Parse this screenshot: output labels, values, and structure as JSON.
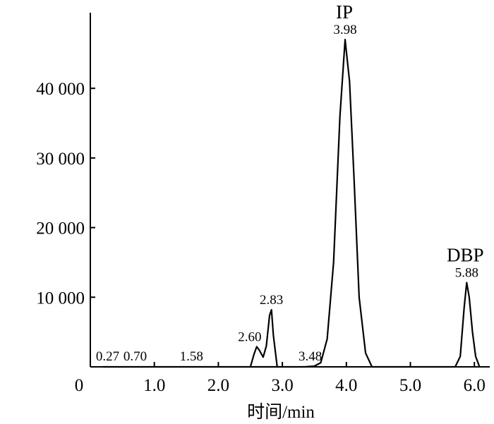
{
  "chart_data": {
    "type": "line",
    "xlabel": "时间/min",
    "ylabel": "",
    "xlim": [
      0,
      6.3
    ],
    "ylim": [
      0,
      50000
    ],
    "x_ticks": [
      {
        "value": 0,
        "label": "0"
      },
      {
        "value": 1,
        "label": "1.0"
      },
      {
        "value": 2,
        "label": "2.0"
      },
      {
        "value": 3,
        "label": "3.0"
      },
      {
        "value": 4,
        "label": "4.0"
      },
      {
        "value": 5,
        "label": "5.0"
      },
      {
        "value": 6,
        "label": "6.0"
      }
    ],
    "y_ticks": [
      {
        "value": 10000,
        "label": "10 000"
      },
      {
        "value": 20000,
        "label": "20 000"
      },
      {
        "value": 30000,
        "label": "30 000"
      },
      {
        "value": 40000,
        "label": "40 000"
      }
    ],
    "grid": false,
    "series": [
      {
        "x": [
          0.2,
          3.35,
          3.5,
          3.6,
          3.7,
          3.8,
          3.9,
          3.98,
          4.05,
          4.12,
          4.2,
          4.3,
          4.4,
          5.7,
          5.78,
          5.84,
          5.88,
          5.92,
          5.97,
          6.02,
          6.08
        ],
        "y": [
          0,
          0,
          100,
          600,
          4000,
          15000,
          36000,
          47000,
          41000,
          27000,
          10000,
          2000,
          0,
          0,
          1500,
          8500,
          12100,
          10000,
          5000,
          1500,
          0
        ]
      }
    ],
    "minor_peaks": [
      {
        "x": [
          2.5,
          2.56,
          2.6,
          2.64,
          2.7,
          2.75,
          2.8,
          2.83,
          2.86,
          2.92
        ],
        "y": [
          0,
          1900,
          2900,
          2400,
          1400,
          3000,
          7400,
          8200,
          4500,
          0
        ]
      }
    ],
    "peak_labels": [
      {
        "x": 0.27,
        "y": 0,
        "label": "0.27"
      },
      {
        "x": 0.7,
        "y": 0,
        "label": "0.70"
      },
      {
        "x": 1.58,
        "y": 0,
        "label": "1.58"
      },
      {
        "x": 2.6,
        "y": 2900,
        "label": "2.60"
      },
      {
        "x": 2.83,
        "y": 8200,
        "label": "2.83"
      },
      {
        "x": 3.48,
        "y": 0,
        "label": "3.48"
      },
      {
        "x": 3.98,
        "y": 47000,
        "label": "3.98"
      },
      {
        "x": 5.88,
        "y": 12100,
        "label": "5.88"
      }
    ],
    "compound_labels": [
      {
        "x": 3.98,
        "y": 47000,
        "label": "IP"
      },
      {
        "x": 5.88,
        "y": 12100,
        "label": "DBP"
      }
    ]
  }
}
